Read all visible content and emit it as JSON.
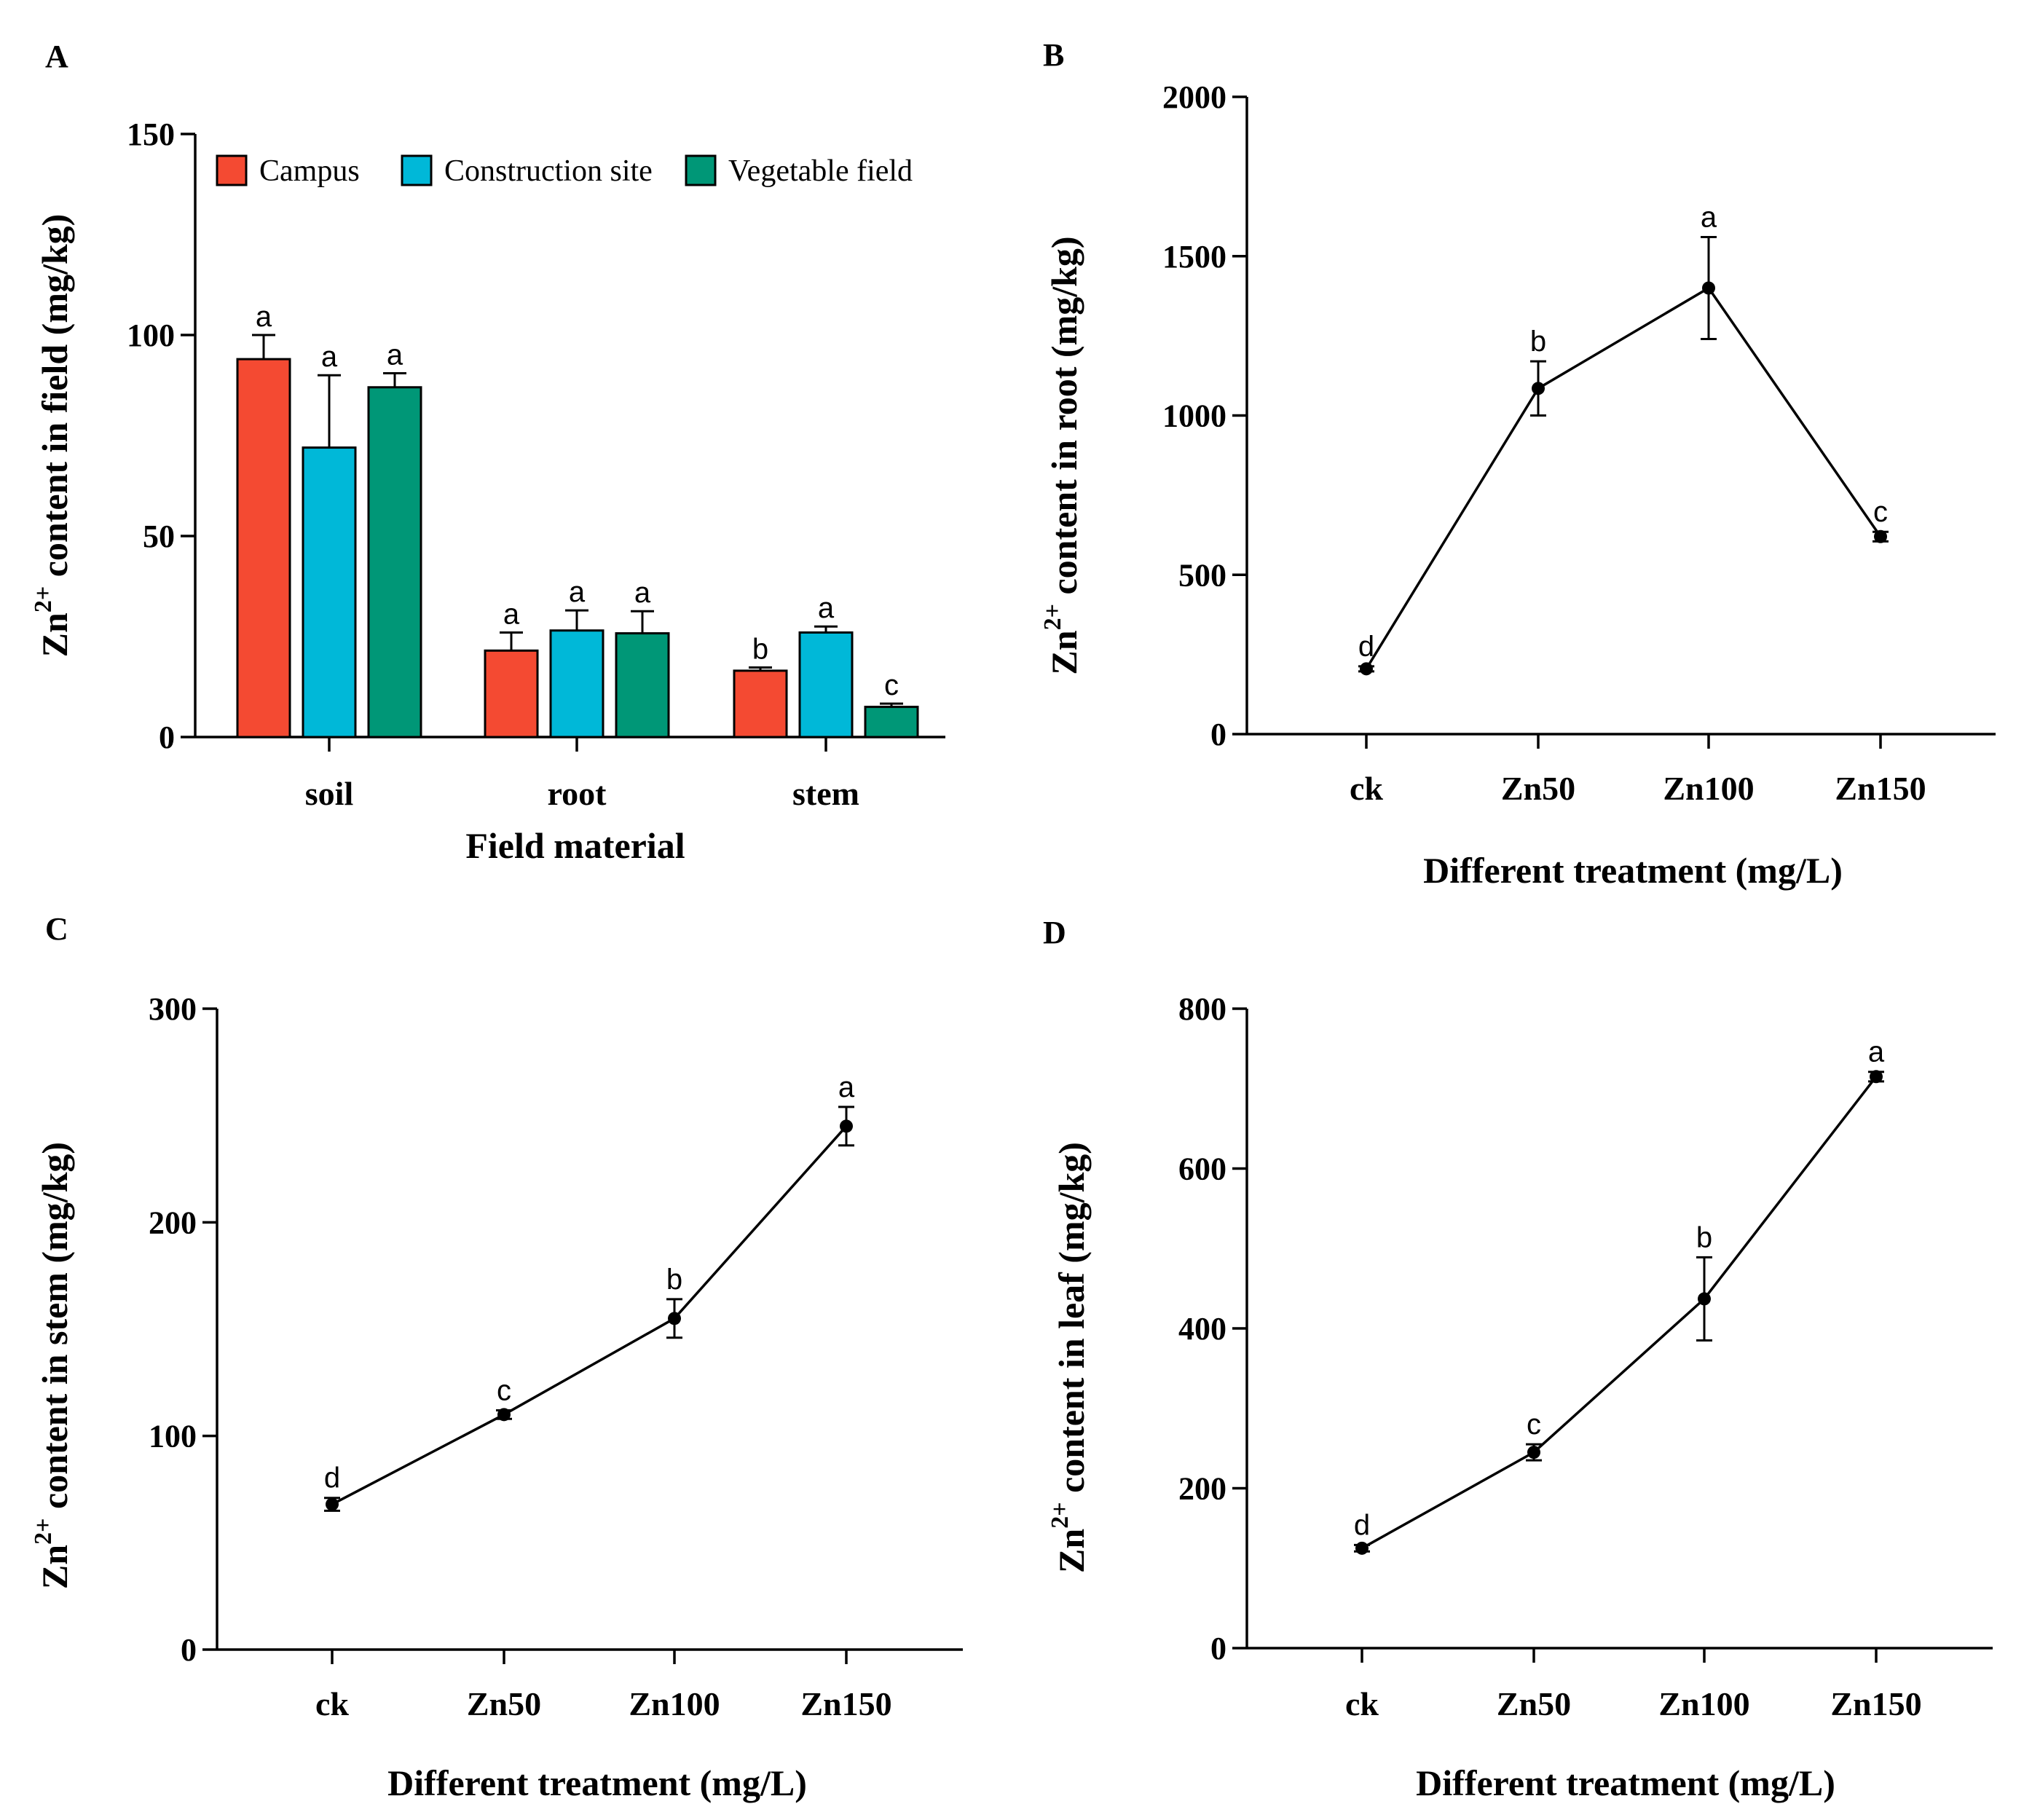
{
  "chart_data": [
    {
      "panel": "A",
      "type": "bar",
      "categories": [
        "soil",
        "root",
        "stem"
      ],
      "series": [
        {
          "name": "Campus",
          "color": "#f44a32",
          "values": [
            94,
            21.5,
            16.5
          ],
          "errors": [
            6,
            4.5,
            0.8
          ],
          "labels": [
            "a",
            "a",
            "b"
          ]
        },
        {
          "name": "Construction site",
          "color": "#00b8d8",
          "values": [
            72,
            26.5,
            26
          ],
          "errors": [
            18,
            5,
            1.5
          ],
          "labels": [
            "a",
            "a",
            "a"
          ]
        },
        {
          "name": "Vegetable field",
          "color": "#009777",
          "values": [
            87,
            25.8,
            7.5
          ],
          "errors": [
            3.5,
            5.5,
            0.8
          ],
          "labels": [
            "a",
            "a",
            "c"
          ]
        }
      ],
      "xlabel": "Field  material",
      "ylabel_main": "Zn",
      "ylabel_sup": "2+",
      "ylabel_rest": " content in field (mg/kg)",
      "ylim": [
        0,
        150
      ],
      "yticks": [
        "0",
        "50",
        "100",
        "150"
      ],
      "legend_position": "top"
    },
    {
      "panel": "B",
      "type": "line",
      "categories": [
        "ck",
        "Zn50",
        "Zn100",
        "Zn150"
      ],
      "values": [
        205,
        1085,
        1400,
        620
      ],
      "errors": [
        8,
        85,
        160,
        15
      ],
      "labels": [
        "d",
        "b",
        "a",
        "c"
      ],
      "xlabel": "Different treatment (mg/L)",
      "ylabel_main": "Zn",
      "ylabel_sup": "2+",
      "ylabel_rest": " content in root (mg/kg)",
      "ylim": [
        0,
        2000
      ],
      "yticks": [
        "0",
        "500",
        "1000",
        "1500",
        "2000"
      ]
    },
    {
      "panel": "C",
      "type": "line",
      "categories": [
        "ck",
        "Zn50",
        "Zn100",
        "Zn150"
      ],
      "values": [
        68,
        110,
        155,
        245
      ],
      "errors": [
        3,
        2,
        9,
        9
      ],
      "labels": [
        "d",
        "c",
        "b",
        "a"
      ],
      "xlabel": "Different treatment (mg/L)",
      "ylabel_main": "Zn",
      "ylabel_sup": "2+",
      "ylabel_rest": " content in stem (mg/kg)",
      "ylim": [
        0,
        300
      ],
      "yticks": [
        "0",
        "100",
        "200",
        "300"
      ]
    },
    {
      "panel": "D",
      "type": "line",
      "categories": [
        "ck",
        "Zn50",
        "Zn100",
        "Zn150"
      ],
      "values": [
        125,
        245,
        437,
        715
      ],
      "errors": [
        4,
        10,
        52,
        6
      ],
      "labels": [
        "d",
        "c",
        "b",
        "a"
      ],
      "xlabel": "Different treatment (mg/L)",
      "ylabel_main": "Zn",
      "ylabel_sup": "2+",
      "ylabel_rest": " content in leaf (mg/kg)",
      "ylim": [
        0,
        800
      ],
      "yticks": [
        "0",
        "200",
        "400",
        "600",
        "800"
      ]
    }
  ]
}
